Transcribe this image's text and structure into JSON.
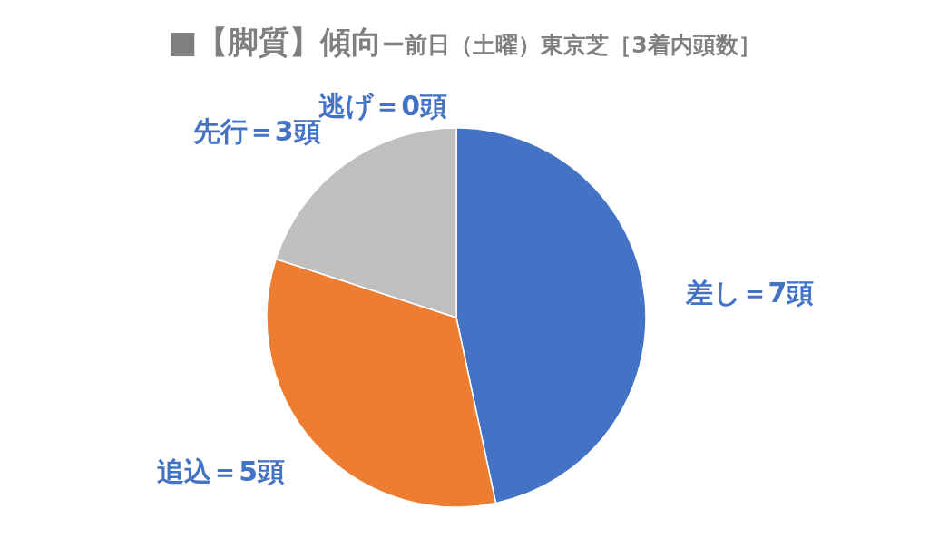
{
  "chart_data": {
    "type": "pie",
    "title": "■【脚質】傾向",
    "subtitle": "ー前日（土曜）東京芝［3着内頭数］",
    "categories": [
      "差し",
      "追込",
      "先行",
      "逃げ"
    ],
    "values": [
      7,
      5,
      3,
      0
    ],
    "colors": [
      "#4472c4",
      "#ed7d31",
      "#bfbfbf",
      "#ffc000"
    ],
    "value_labels": [
      "＝7頭",
      "＝5頭",
      "＝3頭",
      "＝0頭"
    ]
  }
}
